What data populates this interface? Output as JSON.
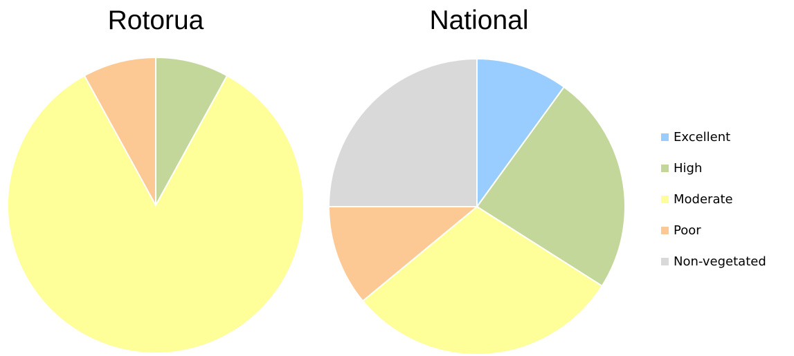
{
  "chart_data": [
    {
      "type": "pie",
      "title": "Rotorua",
      "categories": [
        "Excellent",
        "High",
        "Moderate",
        "Poor",
        "Non-vegetated"
      ],
      "values": [
        0,
        8,
        84,
        8,
        0
      ]
    },
    {
      "type": "pie",
      "title": "National",
      "categories": [
        "Excellent",
        "High",
        "Moderate",
        "Poor",
        "Non-vegetated"
      ],
      "values": [
        10,
        24,
        30,
        11,
        25
      ]
    }
  ],
  "legend": {
    "placement": "right",
    "items": [
      {
        "label": "Excellent",
        "color": "#99ccff"
      },
      {
        "label": "High",
        "color": "#c4d79b"
      },
      {
        "label": "Moderate",
        "color": "#ffff99"
      },
      {
        "label": "Poor",
        "color": "#fcc893"
      },
      {
        "label": "Non-vegetated",
        "color": "#d9d9d9"
      }
    ]
  }
}
